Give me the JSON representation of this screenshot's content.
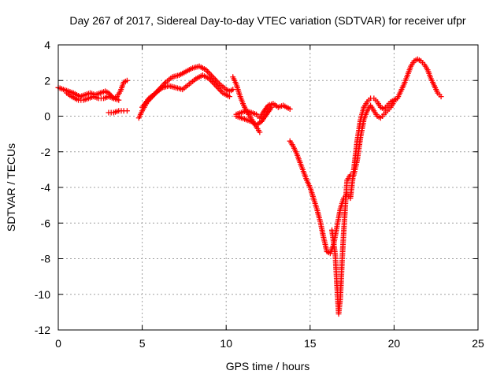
{
  "chart_data": {
    "type": "scatter",
    "title": "Day 267 of 2017, Sidereal Day-to-day VTEC variation (SDTVAR) for receiver ufpr",
    "xlabel": "GPS time / hours",
    "ylabel": "SDTVAR / TECUs",
    "xlim": [
      0,
      25
    ],
    "ylim": [
      -12,
      4
    ],
    "xticks": [
      "0",
      "5",
      "10",
      "15",
      "20",
      "25"
    ],
    "yticks": [
      "4",
      "2",
      "0",
      "-2",
      "-4",
      "-6",
      "-8",
      "-10",
      "-12"
    ],
    "grid": true,
    "marker": "+",
    "color": "#ff0000",
    "series": [
      {
        "x": [
          0.0,
          0.3,
          0.6,
          0.9,
          1.1,
          1.3,
          1.6,
          1.9,
          2.2,
          2.5,
          2.8,
          3.0,
          3.3,
          3.5,
          3.7,
          3.9,
          4.1
        ],
        "y": [
          1.6,
          1.5,
          1.4,
          1.3,
          1.2,
          1.1,
          1.2,
          1.3,
          1.2,
          1.3,
          1.4,
          1.3,
          1.0,
          1.1,
          1.4,
          1.9,
          2.0
        ]
      },
      {
        "x": [
          0.5,
          0.8,
          1.0,
          1.2,
          1.5,
          1.8,
          2.1,
          2.4,
          2.7,
          3.0,
          3.3,
          3.6
        ],
        "y": [
          1.3,
          1.1,
          1.0,
          0.9,
          0.9,
          1.0,
          1.1,
          1.0,
          1.0,
          1.1,
          1.0,
          0.9
        ]
      },
      {
        "x": [
          3.0,
          3.3,
          3.6,
          3.9,
          4.1
        ],
        "y": [
          0.2,
          0.2,
          0.3,
          0.3,
          0.3
        ]
      },
      {
        "x": [
          4.8,
          5.0,
          5.3,
          5.6,
          6.0,
          6.4,
          6.8,
          7.2,
          7.6,
          8.0,
          8.4,
          8.8,
          9.2,
          9.6,
          10.0,
          10.2,
          10.4
        ],
        "y": [
          -0.1,
          0.3,
          0.8,
          1.1,
          1.5,
          1.9,
          2.2,
          2.3,
          2.5,
          2.7,
          2.8,
          2.6,
          2.2,
          1.8,
          1.5,
          1.4,
          1.5
        ]
      },
      {
        "x": [
          5.0,
          5.4,
          5.8,
          6.2,
          6.6,
          7.0,
          7.4,
          7.8,
          8.2,
          8.6,
          9.0,
          9.4,
          9.8,
          10.2
        ],
        "y": [
          0.5,
          1.0,
          1.3,
          1.6,
          1.7,
          1.6,
          1.5,
          1.8,
          2.1,
          2.3,
          2.1,
          1.7,
          1.3,
          1.1
        ]
      },
      {
        "x": [
          10.4,
          10.6,
          10.8,
          11.0,
          11.2,
          11.4,
          11.6,
          11.8,
          12.0
        ],
        "y": [
          2.2,
          1.8,
          1.2,
          0.7,
          0.3,
          0.0,
          -0.3,
          -0.6,
          -0.9
        ]
      },
      {
        "x": [
          10.6,
          10.9,
          11.2,
          11.5,
          11.8,
          12.0,
          12.2,
          12.5,
          12.8,
          13.1,
          13.4,
          13.6,
          13.8
        ],
        "y": [
          0.1,
          0.2,
          0.3,
          0.2,
          0.1,
          -0.1,
          0.2,
          0.6,
          0.7,
          0.5,
          0.6,
          0.5,
          0.4
        ]
      },
      {
        "x": [
          10.6,
          10.9,
          11.2,
          11.5,
          11.8,
          12.1,
          12.4,
          12.7
        ],
        "y": [
          0.0,
          -0.1,
          -0.2,
          -0.3,
          -0.5,
          -0.3,
          0.1,
          0.5
        ]
      },
      {
        "x": [
          13.8,
          14.0,
          14.2,
          14.4,
          14.6,
          14.8,
          15.0,
          15.2,
          15.4,
          15.6,
          15.8,
          16.0,
          16.2,
          16.4,
          16.6,
          16.8,
          17.0,
          17.2,
          17.4,
          17.6,
          17.8,
          18.0,
          18.2,
          18.4,
          18.6,
          18.8,
          19.0,
          19.2,
          19.4,
          19.6,
          19.8,
          20.0,
          20.2,
          20.4,
          20.6,
          20.8,
          21.0,
          21.2,
          21.4,
          21.6,
          21.8,
          22.0,
          22.2,
          22.4,
          22.6,
          22.8
        ],
        "y": [
          -1.4,
          -1.7,
          -2.1,
          -2.6,
          -3.1,
          -3.6,
          -4.0,
          -4.6,
          -5.2,
          -5.9,
          -6.8,
          -7.6,
          -7.7,
          -7.2,
          -6.2,
          -5.2,
          -4.6,
          -4.4,
          -4.6,
          -3.0,
          -1.4,
          -0.2,
          0.5,
          0.8,
          1.0,
          1.0,
          0.8,
          0.5,
          0.4,
          0.6,
          0.8,
          0.9,
          1.0,
          1.4,
          1.8,
          2.3,
          2.8,
          3.1,
          3.2,
          3.1,
          2.9,
          2.6,
          2.1,
          1.7,
          1.3,
          1.1
        ]
      },
      {
        "x": [
          16.3,
          16.5,
          16.6,
          16.7,
          16.8,
          16.9,
          17.0,
          17.1,
          17.2,
          17.4,
          17.6,
          17.8,
          18.0,
          18.2,
          18.4,
          18.6,
          18.8,
          19.0,
          19.2,
          19.4,
          19.6,
          19.8,
          20.0
        ],
        "y": [
          -6.4,
          -7.8,
          -9.5,
          -11.1,
          -10.2,
          -8.2,
          -6.5,
          -5.0,
          -3.6,
          -3.3,
          -3.3,
          -2.5,
          -1.2,
          -0.2,
          0.3,
          0.6,
          0.3,
          0.0,
          -0.1,
          0.1,
          0.3,
          0.5,
          0.8
        ]
      }
    ]
  }
}
